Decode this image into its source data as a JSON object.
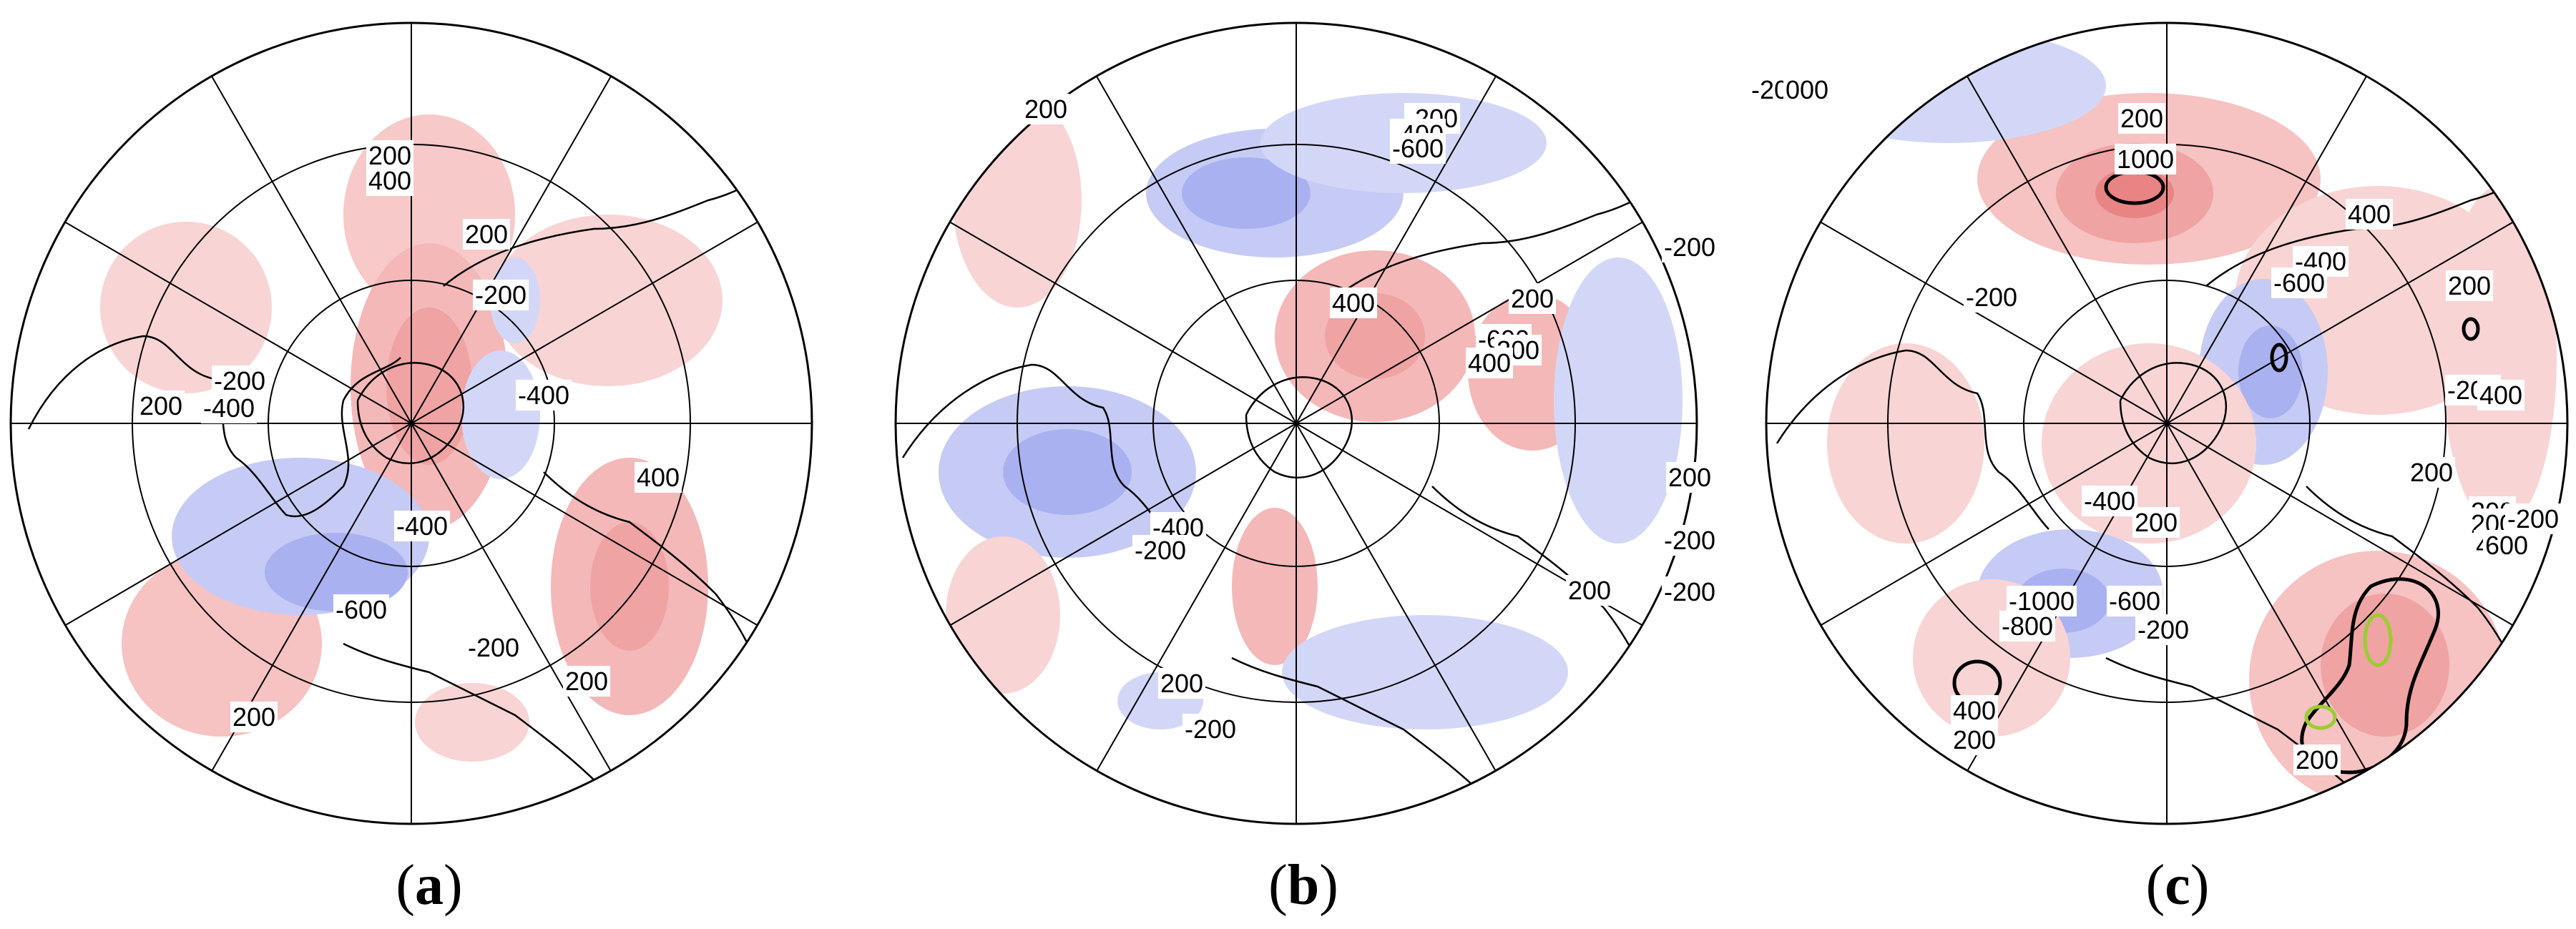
{
  "panels": [
    {
      "id": "a",
      "label_open": "(",
      "label_letter": "a",
      "label_close": ")",
      "contour_labels": [
        "200",
        "400",
        "200",
        "-200",
        "-200",
        "-400",
        "-400",
        "200",
        "400",
        "-400",
        "-600",
        "-200",
        "200",
        "200"
      ],
      "colors": {
        "positive": "#f0a0a0",
        "negative": "#a0a8f0"
      }
    },
    {
      "id": "b",
      "label_open": "(",
      "label_letter": "b",
      "label_close": ")",
      "contour_labels": [
        "200",
        "-200",
        "-400",
        "-600",
        "-200",
        "400",
        "200",
        "-600",
        "200",
        "400",
        "-400",
        "-200",
        "200",
        "-200",
        "200",
        "-200",
        "200",
        "-200"
      ],
      "colors": {
        "positive": "#f0a0a0",
        "negative": "#a0a8f0"
      }
    },
    {
      "id": "c",
      "label_open": "(",
      "label_letter": "c",
      "label_close": ")",
      "contour_labels": [
        "-200",
        "000",
        "200",
        "1000",
        "400",
        "-400",
        "-600",
        "-200",
        "200",
        "-200",
        "400",
        "200",
        "200",
        "-400",
        "200",
        "200",
        "-200",
        "400",
        "600",
        "-1000",
        "-800",
        "-600",
        "-200",
        "400",
        "200",
        "200"
      ],
      "colors": {
        "positive": "#f0a0a0",
        "negative": "#a0a8f0",
        "significance_outline": "#000000",
        "significance_inner": "#9acd32"
      }
    }
  ]
}
